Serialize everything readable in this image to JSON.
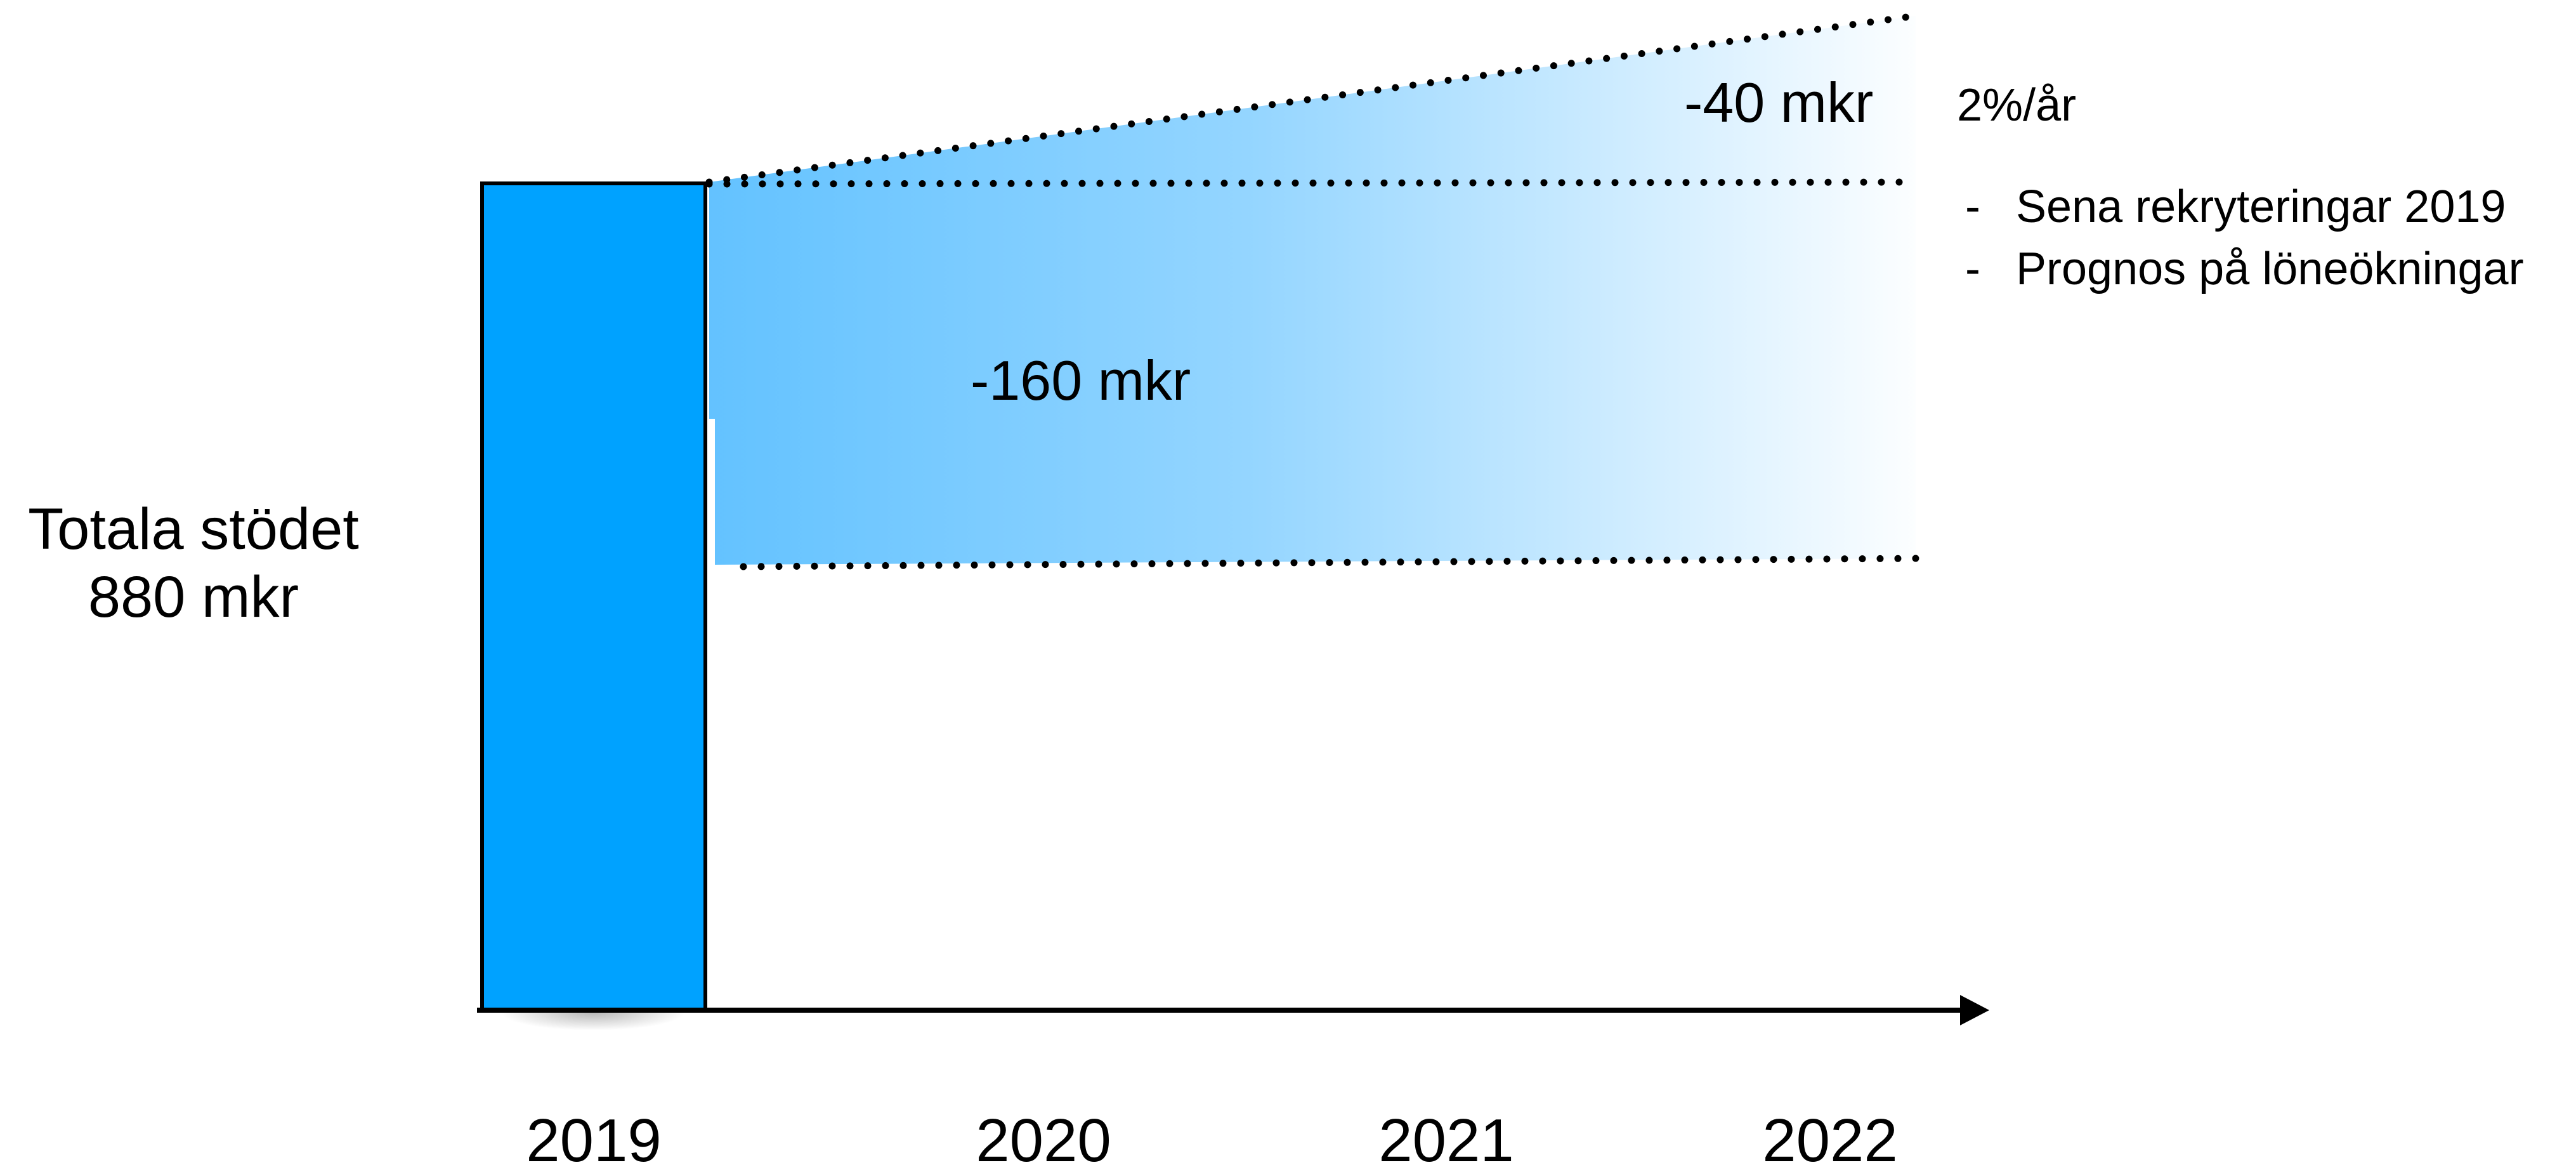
{
  "chart_data": {
    "type": "bar",
    "categories": [
      "2019",
      "2020",
      "2021",
      "2022"
    ],
    "values": [
      880,
      null,
      null,
      null
    ],
    "unit": "mkr",
    "bar_color": "#00a2ff",
    "gradient_color": "#5bbfff",
    "bar_label": {
      "line1": "Totala stödet",
      "line2": "880 mkr"
    },
    "gaps": [
      {
        "label": "-160 mkr",
        "value": -160
      },
      {
        "label": "-40 mkr",
        "value": -40
      }
    ],
    "growth_note": "2%/år",
    "reasons": [
      "Sena rekryteringar 2019",
      "Prognos på löneökningar"
    ],
    "reason_bullet": "-"
  }
}
